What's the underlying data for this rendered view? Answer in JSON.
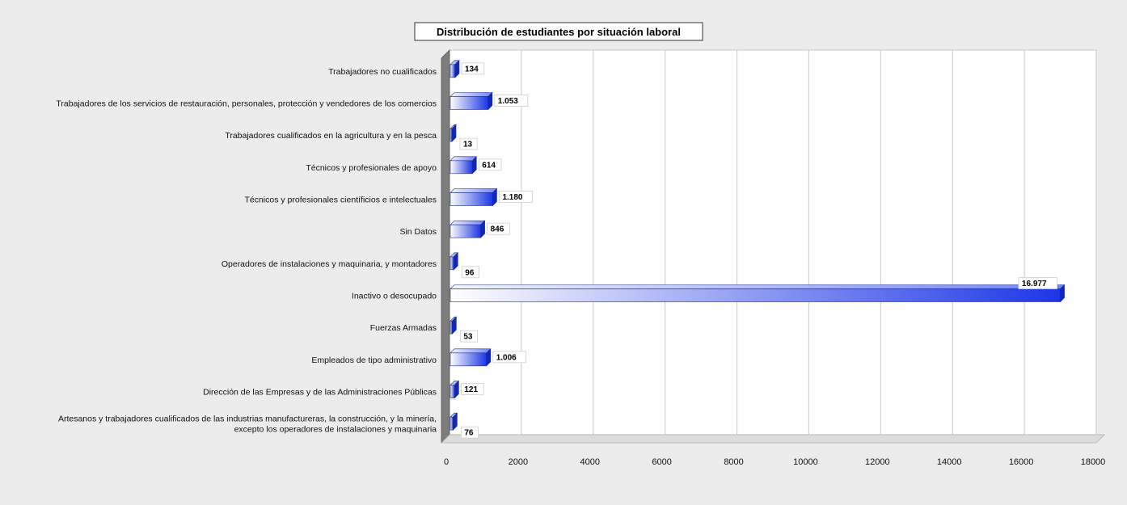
{
  "chart_data": {
    "type": "bar",
    "orientation": "horizontal",
    "title": "Distribución de estudiantes por situación laboral",
    "xlabel": "",
    "ylabel": "",
    "xlim": [
      0,
      18000
    ],
    "x_ticks": [
      0,
      2000,
      4000,
      6000,
      8000,
      10000,
      12000,
      14000,
      16000,
      18000
    ],
    "grid": "vertical",
    "legend": "none",
    "colors": {
      "bar_light": "#ffffff",
      "bar_dark": "#1d36e6",
      "bar_edge": "#1a2a8a",
      "wall": "#7d7d7d",
      "floor": "#dcdcdc"
    },
    "categories": [
      [
        "Trabajadores no cualificados"
      ],
      [
        "Trabajadores de los servicios de restauración, personales, protección y vendedores de los comercios"
      ],
      [
        "Trabajadores cualificados en la agricultura y en la pesca"
      ],
      [
        "Técnicos y profesionales de apoyo"
      ],
      [
        "Técnicos y profesionales científicios e intelectuales"
      ],
      [
        "Sin Datos"
      ],
      [
        "Operadores de instalaciones y maquinaria, y montadores"
      ],
      [
        "Inactivo o desocupado"
      ],
      [
        "Fuerzas Armadas"
      ],
      [
        "Empleados de tipo administrativo"
      ],
      [
        "Dirección de las Empresas y de las Administraciones Públicas"
      ],
      [
        "Artesanos y trabajadores cualificados de las industrias manufactureras, la construcción, y la minería,",
        "excepto los operadores de instalaciones y maquinaria"
      ]
    ],
    "values": [
      134,
      1053,
      13,
      614,
      1180,
      846,
      96,
      16977,
      53,
      1006,
      121,
      76
    ],
    "value_labels": [
      "134",
      "1.053",
      "13",
      "614",
      "1.180",
      "846",
      "96",
      "16.977",
      "53",
      "1.006",
      "121",
      "76"
    ]
  }
}
